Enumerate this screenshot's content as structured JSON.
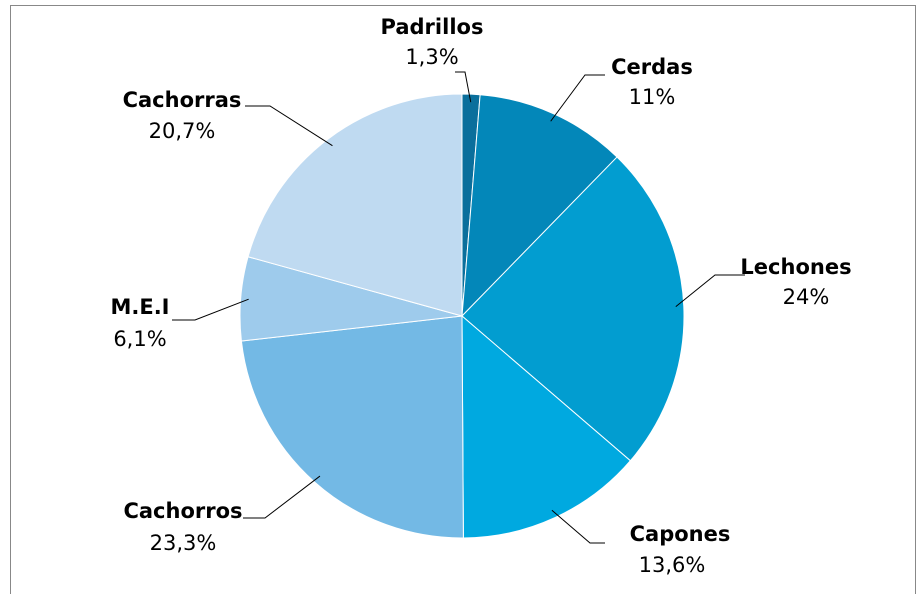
{
  "chart_data": {
    "type": "pie",
    "categories": [
      "Padrillos",
      "Cerdas",
      "Lechones",
      "Capones",
      "Cachorros",
      "M.E.I",
      "Cachorras"
    ],
    "values": [
      1.3,
      11,
      24,
      13.6,
      23.3,
      6.1,
      20.7
    ],
    "value_labels": [
      "1,3%",
      "11%",
      "24%",
      "13,6%",
      "23,3%",
      "6,1%",
      "20,7%"
    ],
    "colors": [
      "#0a6f9c",
      "#0387b9",
      "#029dd0",
      "#00a9e0",
      "#73b9e5",
      "#9ecbec",
      "#bfdaf1"
    ]
  }
}
